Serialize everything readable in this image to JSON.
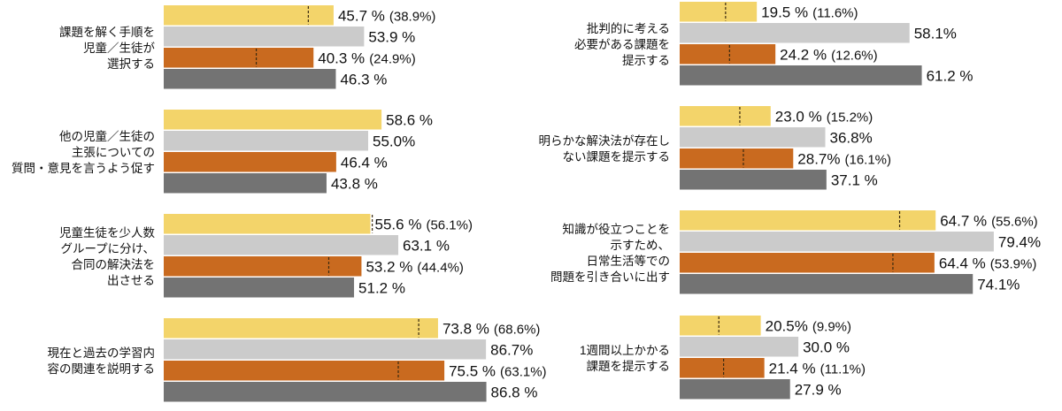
{
  "chart_data": {
    "type": "bar",
    "orientation": "horizontal",
    "colors": [
      "#F3D46A",
      "#CBCBCB",
      "#C96A1F",
      "#737373"
    ],
    "marker_style": "dashed vertical line at parenthetical value",
    "panels": [
      {
        "position": "left",
        "groups": [
          {
            "label": [
              "課題を解く手順を",
              "児童／生徒が",
              "選択する"
            ],
            "bars": [
              {
                "value": 45.7,
                "text": "45.7 %",
                "sub": "(38.9%)",
                "marker": 38.9
              },
              {
                "value": 53.9,
                "text": "53.9 %"
              },
              {
                "value": 40.3,
                "text": "40.3 %",
                "sub": "(24.9%)",
                "marker": 24.9
              },
              {
                "value": 46.3,
                "text": "46.3 %"
              }
            ]
          },
          {
            "label": [
              "他の児童／生徒の",
              "主張についての",
              "質問・意見を言うよう促す"
            ],
            "bars": [
              {
                "value": 58.6,
                "text": "58.6 %"
              },
              {
                "value": 55.0,
                "text": "55.0%"
              },
              {
                "value": 46.4,
                "text": "46.4 %"
              },
              {
                "value": 43.8,
                "text": "43.8 %"
              }
            ]
          },
          {
            "label": [
              "児童生徒を少人数",
              "グループに分け、",
              "合同の解決法を",
              "出させる"
            ],
            "bars": [
              {
                "value": 55.6,
                "text": "55.6 %",
                "sub": "(56.1%)",
                "marker": 56.1
              },
              {
                "value": 63.1,
                "text": "63.1 %"
              },
              {
                "value": 53.2,
                "text": "53.2 %",
                "sub": "(44.4%)",
                "marker": 44.4
              },
              {
                "value": 51.2,
                "text": "51.2 %"
              }
            ]
          },
          {
            "label": [
              "現在と過去の学習内",
              "容の関連を説明する"
            ],
            "bars": [
              {
                "value": 73.8,
                "text": "73.8 %",
                "sub": "(68.6%)",
                "marker": 68.6
              },
              {
                "value": 86.7,
                "text": "86.7%"
              },
              {
                "value": 75.5,
                "text": "75.5 %",
                "sub": "(63.1%)",
                "marker": 63.1
              },
              {
                "value": 86.8,
                "text": "86.8 %"
              }
            ]
          }
        ]
      },
      {
        "position": "right",
        "groups": [
          {
            "label": [
              "批判的に考える",
              "必要がある課題を",
              "提示する"
            ],
            "bars": [
              {
                "value": 19.5,
                "text": "19.5 %",
                "sub": "(11.6%)",
                "marker": 11.6
              },
              {
                "value": 58.1,
                "text": "58.1%"
              },
              {
                "value": 24.2,
                "text": "24.2 %",
                "sub": "(12.6%)",
                "marker": 12.6
              },
              {
                "value": 61.2,
                "text": "61.2 %"
              }
            ]
          },
          {
            "label": [
              "明らかな解決法が存在し",
              "ない課題を提示する"
            ],
            "bars": [
              {
                "value": 23.0,
                "text": "23.0 %",
                "sub": "(15.2%)",
                "marker": 15.2
              },
              {
                "value": 36.8,
                "text": "36.8%"
              },
              {
                "value": 28.7,
                "text": "28.7%",
                "sub": "(16.1%)",
                "marker": 16.1
              },
              {
                "value": 37.1,
                "text": "37.1 %"
              }
            ]
          },
          {
            "label": [
              "知識が役立つことを",
              "示すため、",
              "日常生活等での",
              "問題を引き合いに出す"
            ],
            "bars": [
              {
                "value": 64.7,
                "text": "64.7 %",
                "sub": "(55.6%)",
                "marker": 55.6
              },
              {
                "value": 79.4,
                "text": "79.4%"
              },
              {
                "value": 64.4,
                "text": "64.4 %",
                "sub": "(53.9%)",
                "marker": 53.9
              },
              {
                "value": 74.1,
                "text": "74.1%"
              }
            ]
          },
          {
            "label": [
              "1週間以上かかる",
              "課題を提示する"
            ],
            "bars": [
              {
                "value": 20.5,
                "text": "20.5%",
                "sub": "(9.9%)",
                "marker": 9.9
              },
              {
                "value": 30.0,
                "text": "30.0 %"
              },
              {
                "value": 21.4,
                "text": "21.4 %",
                "sub": "(11.1%)",
                "marker": 11.1
              },
              {
                "value": 27.9,
                "text": "27.9 %"
              }
            ]
          }
        ]
      }
    ]
  }
}
